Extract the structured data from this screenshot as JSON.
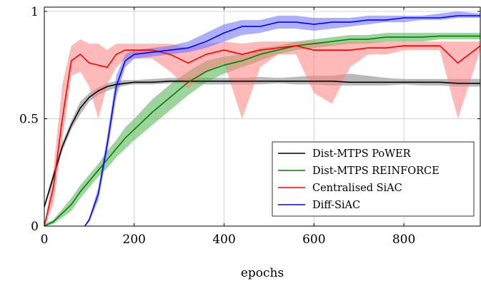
{
  "chart_data": {
    "type": "line",
    "title": "",
    "xlabel": "epochs",
    "ylabel": "",
    "xlim": [
      0,
      970
    ],
    "ylim": [
      0,
      1.02
    ],
    "xticks": [
      0,
      200,
      400,
      600,
      800
    ],
    "yticks": [
      0,
      0.5,
      1
    ],
    "xtick_labels": [
      "0",
      "200",
      "400",
      "600",
      "800"
    ],
    "ytick_labels": [
      "0",
      "0.5",
      "1"
    ],
    "grid": true,
    "legend_position": "bottom-right",
    "series": [
      {
        "name": "Dist-MTPS PoWER",
        "color": "#000000",
        "fill": "#7f7f7f",
        "x": [
          0,
          20,
          40,
          60,
          80,
          100,
          120,
          140,
          160,
          180,
          200,
          240,
          280,
          320,
          360,
          400,
          440,
          480,
          520,
          560,
          600,
          640,
          680,
          720,
          760,
          800,
          840,
          880,
          920,
          970
        ],
        "mean": [
          0.09,
          0.23,
          0.37,
          0.47,
          0.55,
          0.6,
          0.63,
          0.65,
          0.66,
          0.665,
          0.67,
          0.67,
          0.675,
          0.675,
          0.675,
          0.675,
          0.675,
          0.675,
          0.675,
          0.675,
          0.675,
          0.675,
          0.67,
          0.67,
          0.67,
          0.67,
          0.67,
          0.67,
          0.665,
          0.665
        ],
        "lower": [
          0.08,
          0.21,
          0.35,
          0.45,
          0.52,
          0.58,
          0.61,
          0.63,
          0.645,
          0.655,
          0.66,
          0.66,
          0.665,
          0.665,
          0.66,
          0.66,
          0.66,
          0.66,
          0.665,
          0.66,
          0.66,
          0.655,
          0.655,
          0.655,
          0.655,
          0.66,
          0.655,
          0.655,
          0.65,
          0.65
        ],
        "upper": [
          0.1,
          0.25,
          0.39,
          0.49,
          0.58,
          0.62,
          0.645,
          0.665,
          0.675,
          0.68,
          0.68,
          0.685,
          0.69,
          0.69,
          0.69,
          0.69,
          0.69,
          0.695,
          0.69,
          0.695,
          0.7,
          0.7,
          0.71,
          0.7,
          0.69,
          0.685,
          0.685,
          0.685,
          0.685,
          0.685
        ]
      },
      {
        "name": "Dist-MTPS REINFORCE",
        "color": "#008000",
        "fill": "#4caf4c",
        "x": [
          0,
          20,
          40,
          60,
          80,
          100,
          120,
          140,
          160,
          180,
          200,
          240,
          280,
          320,
          360,
          400,
          440,
          480,
          520,
          560,
          600,
          640,
          680,
          720,
          760,
          800,
          840,
          880,
          920,
          970
        ],
        "mean": [
          0.0,
          0.02,
          0.06,
          0.1,
          0.16,
          0.21,
          0.26,
          0.31,
          0.36,
          0.41,
          0.45,
          0.53,
          0.6,
          0.67,
          0.72,
          0.75,
          0.77,
          0.8,
          0.82,
          0.84,
          0.85,
          0.86,
          0.87,
          0.87,
          0.88,
          0.88,
          0.88,
          0.885,
          0.885,
          0.885
        ],
        "lower": [
          0.0,
          0.01,
          0.04,
          0.07,
          0.13,
          0.18,
          0.23,
          0.27,
          0.32,
          0.36,
          0.4,
          0.47,
          0.54,
          0.61,
          0.67,
          0.71,
          0.74,
          0.77,
          0.8,
          0.82,
          0.83,
          0.84,
          0.85,
          0.85,
          0.86,
          0.86,
          0.86,
          0.87,
          0.87,
          0.87
        ],
        "upper": [
          0.01,
          0.03,
          0.08,
          0.13,
          0.19,
          0.24,
          0.29,
          0.35,
          0.4,
          0.46,
          0.5,
          0.59,
          0.66,
          0.72,
          0.77,
          0.79,
          0.8,
          0.83,
          0.84,
          0.86,
          0.87,
          0.88,
          0.89,
          0.89,
          0.9,
          0.9,
          0.9,
          0.9,
          0.9,
          0.9
        ]
      },
      {
        "name": "Centralised SiAC",
        "color": "#ff0000",
        "fill": "#ff8080",
        "x": [
          0,
          20,
          40,
          60,
          80,
          100,
          120,
          140,
          160,
          180,
          200,
          240,
          280,
          320,
          360,
          400,
          440,
          480,
          520,
          560,
          600,
          640,
          680,
          720,
          760,
          800,
          840,
          880,
          920,
          970
        ],
        "mean": [
          0.0,
          0.18,
          0.5,
          0.77,
          0.8,
          0.76,
          0.75,
          0.74,
          0.8,
          0.82,
          0.82,
          0.82,
          0.8,
          0.76,
          0.8,
          0.82,
          0.8,
          0.82,
          0.83,
          0.84,
          0.82,
          0.82,
          0.82,
          0.83,
          0.83,
          0.84,
          0.84,
          0.84,
          0.76,
          0.84
        ],
        "lower": [
          0.0,
          0.1,
          0.4,
          0.7,
          0.72,
          0.65,
          0.5,
          0.66,
          0.74,
          0.78,
          0.78,
          0.78,
          0.72,
          0.64,
          0.72,
          0.76,
          0.5,
          0.74,
          0.8,
          0.8,
          0.62,
          0.57,
          0.74,
          0.8,
          0.8,
          0.82,
          0.82,
          0.82,
          0.5,
          0.82
        ],
        "upper": [
          0.0,
          0.26,
          0.66,
          0.84,
          0.87,
          0.85,
          0.85,
          0.82,
          0.85,
          0.85,
          0.85,
          0.85,
          0.85,
          0.83,
          0.85,
          0.86,
          0.85,
          0.86,
          0.86,
          0.86,
          0.86,
          0.85,
          0.86,
          0.86,
          0.86,
          0.86,
          0.86,
          0.86,
          0.86,
          0.86
        ]
      },
      {
        "name": "Diff-SiAC",
        "color": "#0000ff",
        "fill": "#6b6bff",
        "x": [
          90,
          100,
          120,
          140,
          160,
          180,
          200,
          240,
          280,
          320,
          360,
          400,
          440,
          480,
          520,
          560,
          600,
          640,
          680,
          720,
          760,
          800,
          840,
          880,
          920,
          970
        ],
        "mean": [
          0.0,
          0.03,
          0.15,
          0.38,
          0.65,
          0.77,
          0.8,
          0.81,
          0.82,
          0.83,
          0.86,
          0.9,
          0.93,
          0.93,
          0.95,
          0.95,
          0.94,
          0.95,
          0.95,
          0.96,
          0.96,
          0.97,
          0.97,
          0.97,
          0.98,
          0.98
        ],
        "lower": [
          0.0,
          0.02,
          0.12,
          0.34,
          0.6,
          0.74,
          0.78,
          0.79,
          0.8,
          0.81,
          0.83,
          0.86,
          0.89,
          0.9,
          0.92,
          0.92,
          0.91,
          0.92,
          0.93,
          0.94,
          0.95,
          0.95,
          0.96,
          0.96,
          0.97,
          0.97
        ],
        "upper": [
          0.0,
          0.04,
          0.18,
          0.42,
          0.7,
          0.8,
          0.82,
          0.83,
          0.84,
          0.86,
          0.9,
          0.94,
          0.96,
          0.96,
          0.98,
          0.98,
          0.97,
          0.97,
          0.97,
          0.98,
          0.98,
          0.98,
          0.98,
          0.99,
          1.0,
          0.99
        ]
      }
    ]
  }
}
